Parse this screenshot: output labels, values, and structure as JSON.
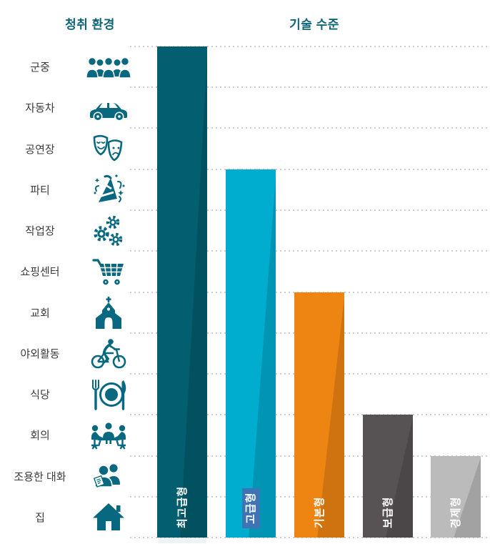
{
  "header": {
    "left": "청취 환경",
    "right": "기술 수준"
  },
  "environments": [
    {
      "label": "군중",
      "icon": "crowd-icon"
    },
    {
      "label": "자동차",
      "icon": "car-icon"
    },
    {
      "label": "공연장",
      "icon": "theater-masks-icon"
    },
    {
      "label": "파티",
      "icon": "party-icon"
    },
    {
      "label": "작업장",
      "icon": "gears-icon"
    },
    {
      "label": "쇼핑센터",
      "icon": "shopping-cart-icon"
    },
    {
      "label": "교회",
      "icon": "church-icon"
    },
    {
      "label": "야외활동",
      "icon": "cycling-icon"
    },
    {
      "label": "식당",
      "icon": "restaurant-icon"
    },
    {
      "label": "회의",
      "icon": "meeting-icon"
    },
    {
      "label": "조용한 대화",
      "icon": "conversation-icon"
    },
    {
      "label": "집",
      "icon": "home-icon"
    }
  ],
  "chart_data": {
    "type": "bar",
    "categories": [
      "최고급형",
      "고급형",
      "기본형",
      "보급형",
      "경제형"
    ],
    "values": [
      12,
      9,
      6,
      3,
      2
    ],
    "value_meaning": "number of listening environments covered (of 12 rows)",
    "ylim": [
      0,
      12
    ],
    "grid_rows": 12,
    "grid_style": "dotted horizontal lines",
    "bar_colors": [
      "#035e6f",
      "#00adce",
      "#ee8513",
      "#575254",
      "#bcbbbb"
    ],
    "label_style": "white bold, rotated -90deg, inside bar near bottom",
    "highlighted_category": "고급형",
    "highlight_color": "#3e74b4"
  },
  "colors": {
    "header_text": "#0d6578",
    "row_label_text": "#3c3c3c",
    "icon_teal": "#076880",
    "gridline": "#cdcdcd",
    "background": "#ffffff"
  }
}
